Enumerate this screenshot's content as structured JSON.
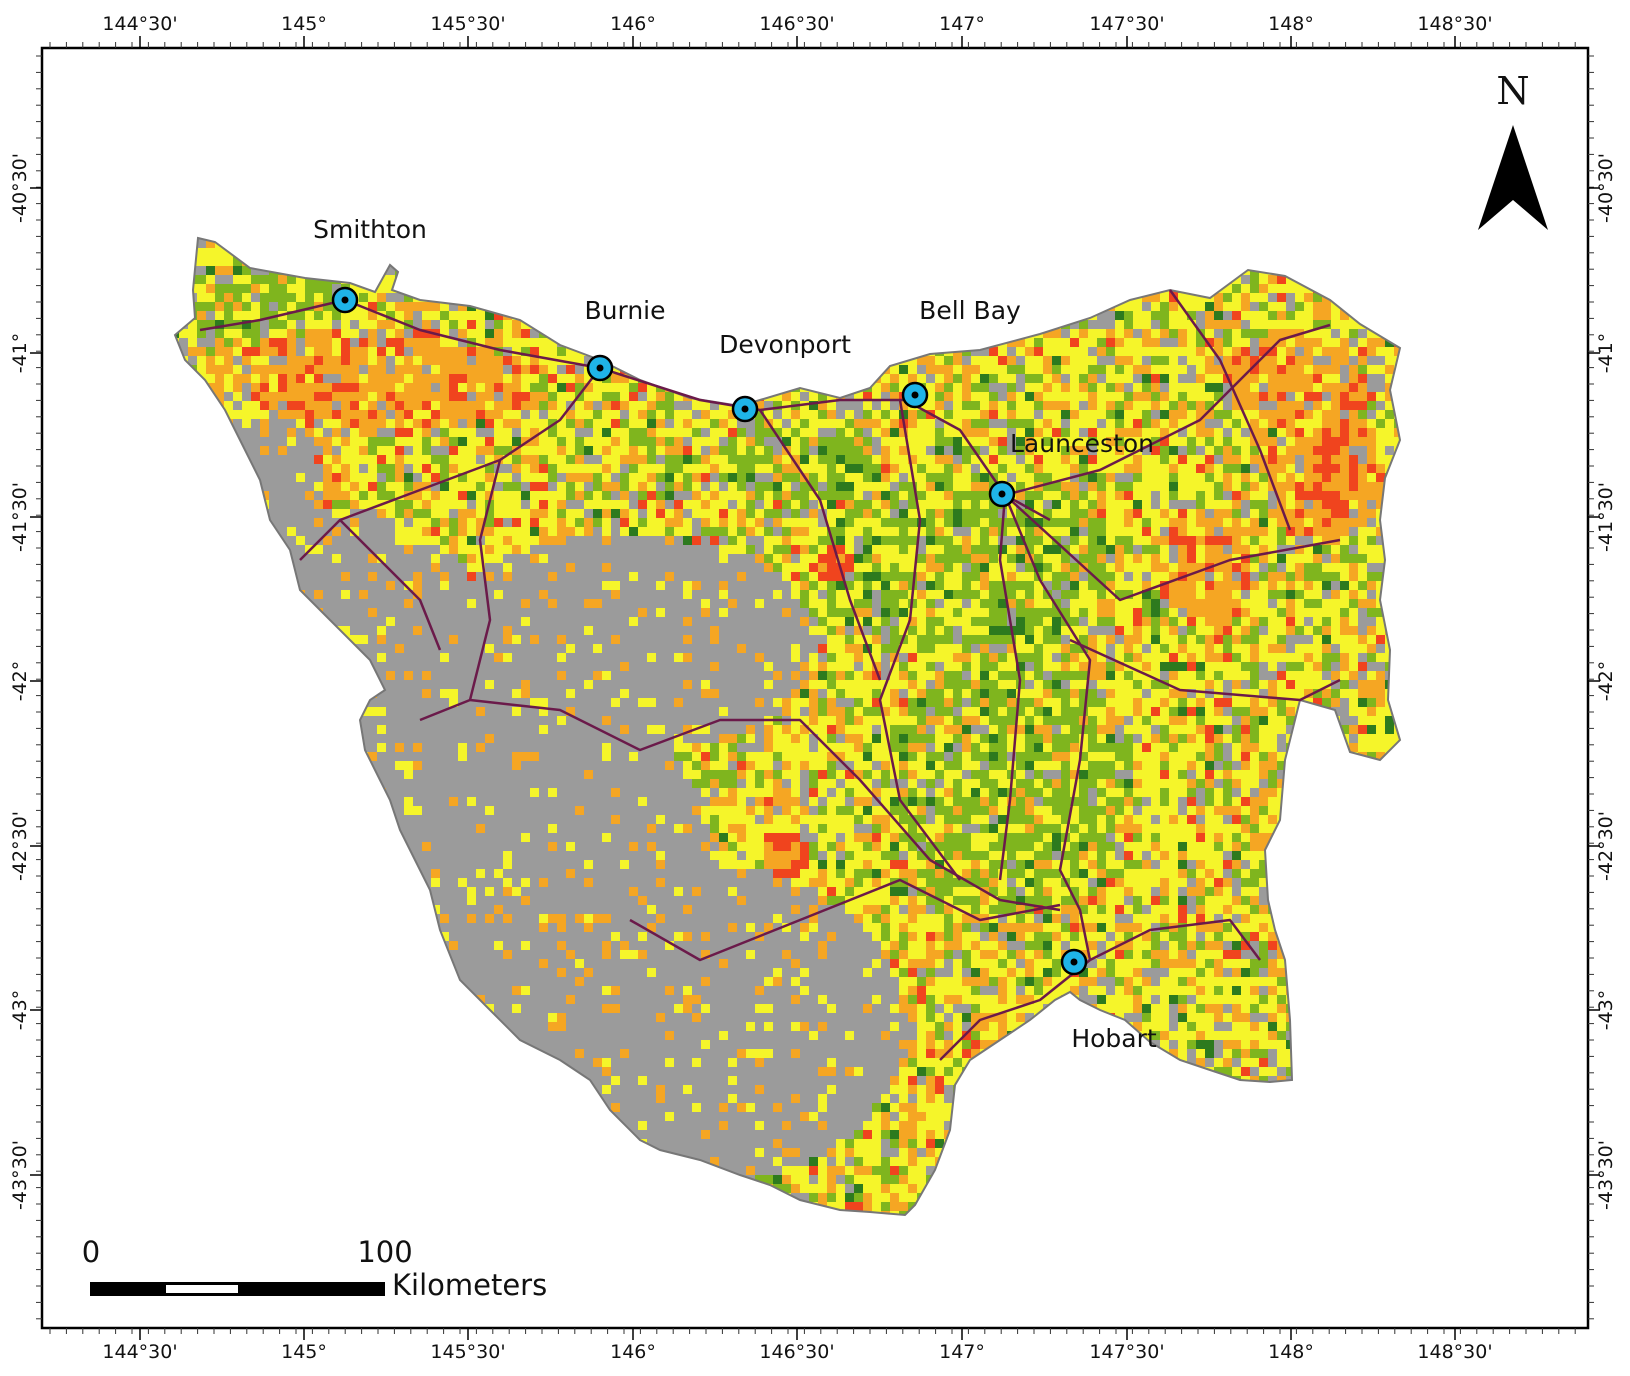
{
  "map": {
    "top_ticks": [
      "144°30'",
      "145°",
      "145°30'",
      "146°",
      "146°30'",
      "147°",
      "147°30'",
      "148°",
      "148°30'"
    ],
    "bottom_ticks": [
      "144°30'",
      "145°",
      "145°30'",
      "146°",
      "146°30'",
      "147°",
      "147°30'",
      "148°",
      "148°30'"
    ],
    "left_ticks": [
      "-40°30'",
      "-41°",
      "-41°30'",
      "-42°",
      "-42°30'",
      "-43°",
      "-43°30'"
    ],
    "right_ticks": [
      "-40°30'",
      "-41°",
      "-41°30'",
      "-42°",
      "-42°30'",
      "-43°",
      "-43°30'"
    ],
    "cities": [
      {
        "name": "Smithton"
      },
      {
        "name": "Burnie"
      },
      {
        "name": "Devonport"
      },
      {
        "name": "Bell Bay"
      },
      {
        "name": "Launceston"
      },
      {
        "name": "Hobart"
      }
    ],
    "north_arrow": {
      "label": "N"
    },
    "scale_bar": {
      "start_label": "0",
      "end_label": "100",
      "unit_label": "Kilometers"
    },
    "colors": {
      "gray": "#9b9b9b",
      "yellow": "#f5f52a",
      "light_green": "#7fb51e",
      "dark_green": "#2d7a1e",
      "orange": "#f5a623",
      "red": "#f0441e",
      "roads": "#6b1a4a",
      "city_marker": "#1fb4e8",
      "frame": "#000000"
    }
  }
}
